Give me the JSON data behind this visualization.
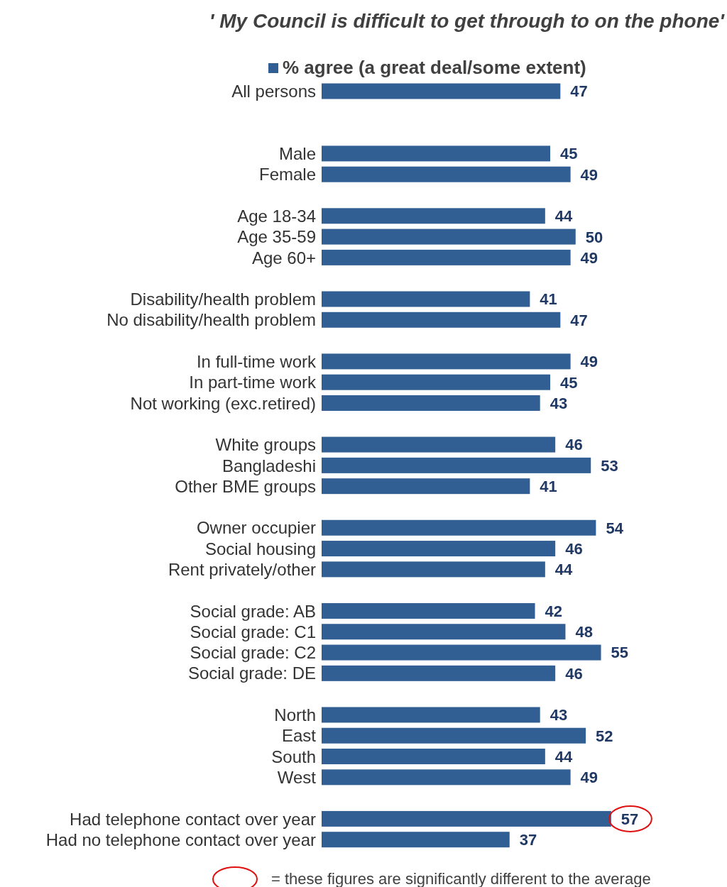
{
  "chart_data": {
    "type": "bar",
    "orientation": "horizontal",
    "title": "' My Council is difficult to get through to on the phone'",
    "categories": [
      "All persons",
      null,
      null,
      "Male",
      "Female",
      null,
      "Age 18-34",
      "Age 35-59",
      "Age 60+",
      null,
      "Disability/health problem",
      "No disability/health problem",
      null,
      "In full-time work",
      "In part-time work",
      "Not working (exc.retired)",
      null,
      "White groups",
      "Bangladeshi",
      "Other BME groups",
      null,
      "Owner occupier",
      "Social housing",
      "Rent privately/other",
      null,
      "Social grade: AB",
      "Social grade: C1",
      "Social grade: C2",
      "Social grade: DE",
      null,
      "North",
      "East",
      "South",
      "West",
      null,
      "Had telephone contact over year",
      "Had no telephone contact over year"
    ],
    "series": [
      {
        "name": "% agree (a great deal/some extent)",
        "color": "#315f94",
        "values": [
          47,
          null,
          null,
          45,
          49,
          null,
          44,
          50,
          49,
          null,
          41,
          47,
          null,
          49,
          45,
          43,
          null,
          46,
          53,
          41,
          null,
          54,
          46,
          44,
          null,
          42,
          48,
          55,
          46,
          null,
          43,
          52,
          44,
          49,
          null,
          57,
          37
        ]
      }
    ],
    "data_labels": true,
    "legend": "top",
    "annotations": [
      {
        "text": "= these figures are significantly different to the average",
        "x": 57,
        "y": "Had telephone contact over year"
      }
    ]
  }
}
